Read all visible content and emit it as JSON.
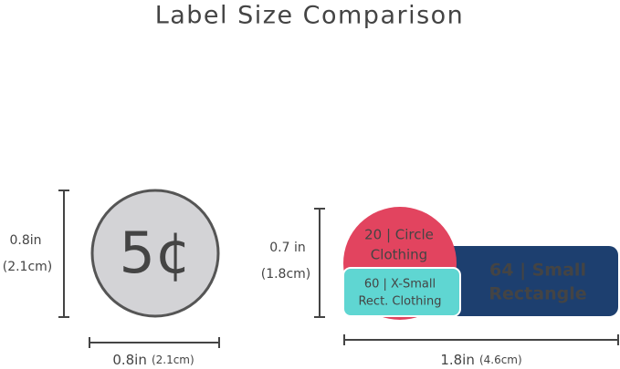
{
  "title": "Label Size Comparison",
  "coin": {
    "symbol": "5¢",
    "height_in": "0.8in",
    "height_cm": "(2.1cm)",
    "width_in": "0.8in",
    "width_cm": "(2.1cm)"
  },
  "labels": {
    "height_in": "0.7 in",
    "height_cm": "(1.8cm)",
    "width_in": "1.8in",
    "width_cm": "(4.6cm)",
    "circle": [
      "20 | Circle",
      "Clothing"
    ],
    "xsmall": [
      "60 | X-Small",
      "Rect. Clothing"
    ],
    "small": [
      "64 | Small",
      "Rectangle"
    ]
  }
}
